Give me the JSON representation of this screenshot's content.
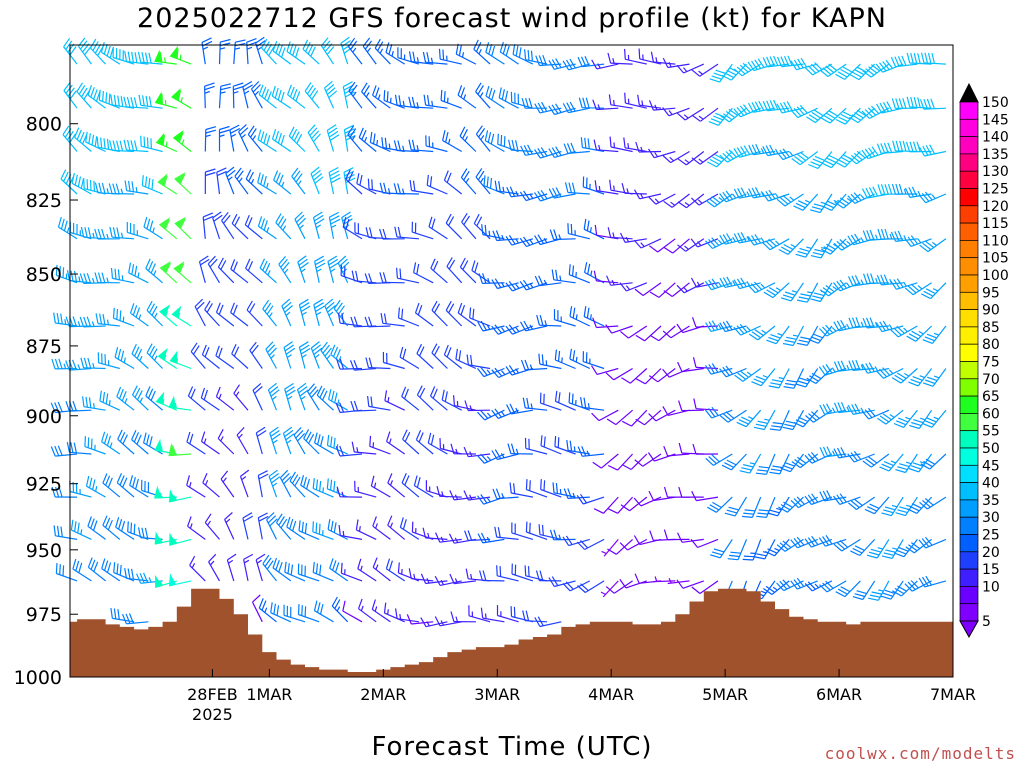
{
  "title": "2025022712 GFS forecast wind profile (kt) for KAPN",
  "credit": "coolwx.com/modelts",
  "colors": {
    "terrain": "#a0522d",
    "speed_scale": [
      {
        "value": 5,
        "color": "#7f00ff"
      },
      {
        "value": 10,
        "color": "#6a00ff"
      },
      {
        "value": 15,
        "color": "#3f1fff"
      },
      {
        "value": 20,
        "color": "#1f3fff"
      },
      {
        "value": 25,
        "color": "#005fff"
      },
      {
        "value": 30,
        "color": "#007fff"
      },
      {
        "value": 35,
        "color": "#009fff"
      },
      {
        "value": 40,
        "color": "#00bfff"
      },
      {
        "value": 45,
        "color": "#00dfff"
      },
      {
        "value": 50,
        "color": "#00ffdf"
      },
      {
        "value": 55,
        "color": "#00ffbf"
      },
      {
        "value": 60,
        "color": "#3fff3f"
      },
      {
        "value": 65,
        "color": "#1fff1f"
      },
      {
        "value": 70,
        "color": "#7fff00"
      },
      {
        "value": 75,
        "color": "#bfff00"
      },
      {
        "value": 80,
        "color": "#ffff00"
      },
      {
        "value": 85,
        "color": "#ffef00"
      },
      {
        "value": 90,
        "color": "#ffdf00"
      },
      {
        "value": 95,
        "color": "#ffbf00"
      },
      {
        "value": 100,
        "color": "#ff9f00"
      },
      {
        "value": 105,
        "color": "#ff8f00"
      },
      {
        "value": 110,
        "color": "#ff7f00"
      },
      {
        "value": 115,
        "color": "#ff5f00"
      },
      {
        "value": 120,
        "color": "#ff3f00"
      },
      {
        "value": 125,
        "color": "#ff0000"
      },
      {
        "value": 130,
        "color": "#ff0040"
      },
      {
        "value": 135,
        "color": "#ff0080"
      },
      {
        "value": 140,
        "color": "#ff00bf"
      },
      {
        "value": 145,
        "color": "#ff00df"
      },
      {
        "value": 150,
        "color": "#ff00ff"
      }
    ]
  },
  "chart_data": {
    "type": "wind-barb time-height",
    "title": "2025022712 GFS forecast wind profile (kt) for KAPN",
    "xlabel": "Forecast Time (UTC)",
    "ylabel": "",
    "x_ticks": [
      {
        "label": "28FEB",
        "sublabel": "2025",
        "hour": 12
      },
      {
        "label": "1MAR",
        "sublabel": "",
        "hour": 24
      },
      {
        "label": "2MAR",
        "sublabel": "",
        "hour": 48
      },
      {
        "label": "3MAR",
        "sublabel": "",
        "hour": 72
      },
      {
        "label": "4MAR",
        "sublabel": "",
        "hour": 96
      },
      {
        "label": "5MAR",
        "sublabel": "",
        "hour": 120
      },
      {
        "label": "6MAR",
        "sublabel": "",
        "hour": 144
      },
      {
        "label": "7MAR",
        "sublabel": "",
        "hour": 168
      }
    ],
    "x_range_hours": [
      -18,
      168
    ],
    "y_ticks": [
      "800",
      "825",
      "850",
      "875",
      "900",
      "925",
      "950",
      "975",
      "1000"
    ],
    "y_range_hPa": [
      1000,
      775
    ],
    "y_scale": "log",
    "colorbar_labels": [
      "150",
      "145",
      "140",
      "135",
      "130",
      "125",
      "120",
      "115",
      "110",
      "105",
      "100",
      "95",
      "90",
      "85",
      "80",
      "75",
      "70",
      "65",
      "60",
      "55",
      "50",
      "45",
      "40",
      "35",
      "30",
      "25",
      "20",
      "15",
      "10",
      "5"
    ],
    "levels_hPa": [
      781,
      795,
      809,
      823,
      838,
      853,
      868,
      883,
      898,
      914,
      930,
      946,
      962,
      978
    ],
    "barb_interval_hours": 3,
    "wind_regimes": [
      {
        "from_hour": -18,
        "to_hour": 3,
        "direction_deg": 300,
        "speed_kt_range": [
          25,
          40
        ]
      },
      {
        "from_hour": 3,
        "to_hour": 9,
        "direction_deg": 295,
        "speed_kt_range": [
          45,
          65
        ]
      },
      {
        "from_hour": 9,
        "to_hour": 24,
        "direction_deg": 340,
        "speed_kt_range": [
          10,
          25
        ]
      },
      {
        "from_hour": 24,
        "to_hour": 42,
        "direction_deg": 330,
        "speed_kt_range": [
          25,
          40
        ]
      },
      {
        "from_hour": 42,
        "to_hour": 72,
        "direction_deg": 300,
        "speed_kt_range": [
          10,
          25
        ]
      },
      {
        "from_hour": 72,
        "to_hour": 96,
        "direction_deg": 280,
        "speed_kt_range": [
          15,
          30
        ]
      },
      {
        "from_hour": 96,
        "to_hour": 120,
        "direction_deg": 260,
        "speed_kt_range": [
          5,
          15
        ]
      },
      {
        "from_hour": 120,
        "to_hour": 144,
        "direction_deg": 240,
        "speed_kt_range": [
          20,
          40
        ]
      },
      {
        "from_hour": 144,
        "to_hour": 168,
        "direction_deg": 250,
        "speed_kt_range": [
          25,
          40
        ]
      }
    ],
    "surface_pressure": {
      "hours": [
        -18,
        -15,
        -12,
        -9,
        -6,
        -3,
        0,
        3,
        6,
        9,
        12,
        15,
        18,
        21,
        24,
        27,
        30,
        33,
        36,
        39,
        42,
        45,
        48,
        51,
        54,
        57,
        60,
        63,
        66,
        69,
        72,
        75,
        78,
        81,
        84,
        87,
        90,
        93,
        96,
        99,
        102,
        105,
        108,
        111,
        114,
        117,
        120,
        123,
        126,
        129,
        132,
        135,
        138,
        141,
        144,
        147,
        150,
        153,
        156,
        159,
        162,
        165,
        168
      ],
      "hPa": [
        978,
        977,
        977,
        979,
        980,
        981,
        980,
        978,
        972,
        965,
        965,
        969,
        975,
        983,
        990,
        993,
        995,
        996,
        997,
        997,
        998,
        998,
        997,
        996,
        995,
        994,
        992,
        990,
        989,
        988,
        988,
        987,
        985,
        984,
        983,
        980,
        979,
        978,
        978,
        978,
        979,
        979,
        978,
        975,
        970,
        966,
        965,
        965,
        966,
        970,
        973,
        976,
        977,
        978,
        978,
        979,
        978,
        978,
        978,
        978,
        978,
        978,
        978
      ]
    }
  }
}
